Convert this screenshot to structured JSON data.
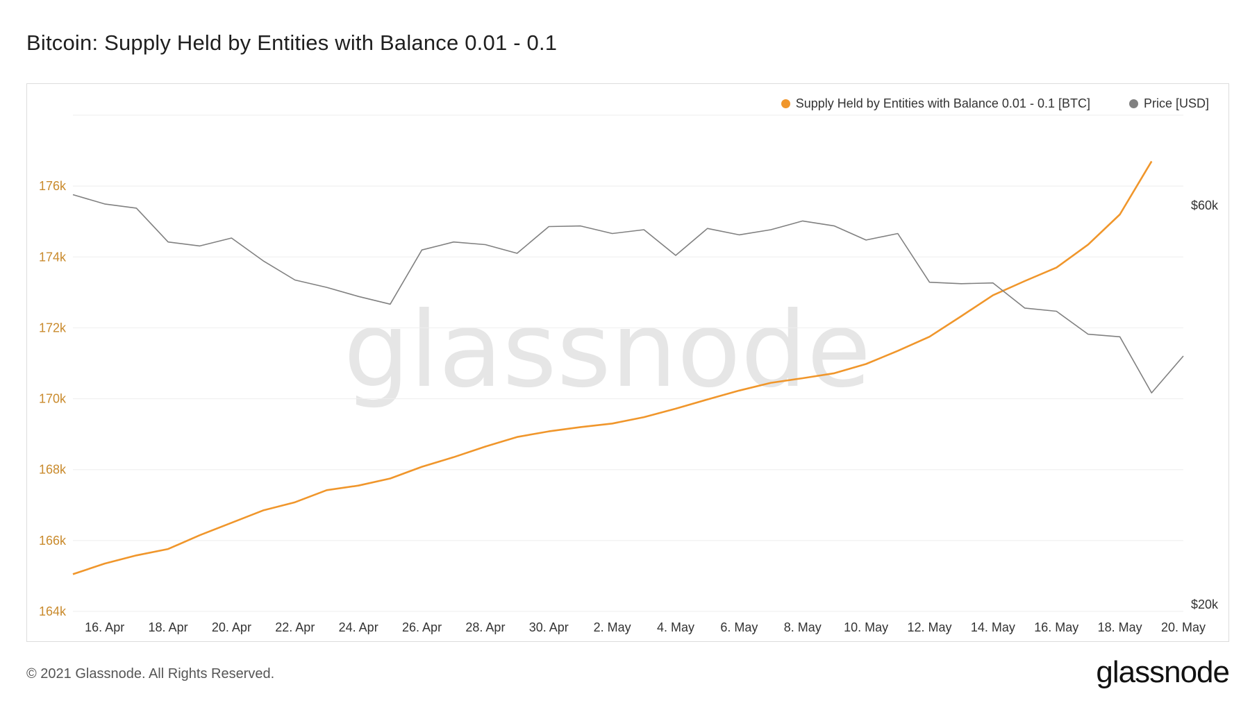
{
  "page": {
    "title": "Bitcoin: Supply Held by Entities with Balance 0.01 - 0.1",
    "copyright": "© 2021 Glassnode. All Rights Reserved.",
    "brand": "glassnode",
    "watermark": "glassnode"
  },
  "colors": {
    "supply": "#f0962b",
    "price": "#808080",
    "left_axis_text": "#c98a2c",
    "right_axis_text": "#333333",
    "grid": "#eeeeee"
  },
  "chart_data": {
    "type": "line",
    "title": "Bitcoin: Supply Held by Entities with Balance 0.01 - 0.1",
    "legend": [
      {
        "name": "Supply Held by Entities with Balance 0.01 - 0.1 [BTC]",
        "color": "#f0962b"
      },
      {
        "name": "Price [USD]",
        "color": "#808080"
      }
    ],
    "legend_position": "top-right",
    "grid": true,
    "x_ticks": [
      "16. Apr",
      "18. Apr",
      "20. Apr",
      "22. Apr",
      "24. Apr",
      "26. Apr",
      "28. Apr",
      "30. Apr",
      "2. May",
      "4. May",
      "6. May",
      "8. May",
      "10. May",
      "12. May",
      "14. May",
      "16. May",
      "18. May",
      "20. May"
    ],
    "x": [
      "15. Apr",
      "16. Apr",
      "17. Apr",
      "18. Apr",
      "19. Apr",
      "20. Apr",
      "21. Apr",
      "22. Apr",
      "23. Apr",
      "24. Apr",
      "25. Apr",
      "26. Apr",
      "27. Apr",
      "28. Apr",
      "29. Apr",
      "30. Apr",
      "1. May",
      "2. May",
      "3. May",
      "4. May",
      "5. May",
      "6. May",
      "7. May",
      "8. May",
      "9. May",
      "10. May",
      "11. May",
      "12. May",
      "13. May",
      "14. May",
      "15. May",
      "16. May",
      "17. May",
      "18. May",
      "19. May",
      "20. May"
    ],
    "y_left": {
      "ticks": [
        "164k",
        "166k",
        "168k",
        "170k",
        "172k",
        "174k",
        "176k"
      ],
      "range": [
        164000,
        178000
      ]
    },
    "y_right": {
      "ticks": [
        "$20k",
        "$60k"
      ],
      "tick_values": [
        20000,
        60000
      ],
      "scale": "log"
    },
    "series": [
      {
        "name": "Supply Held by Entities with Balance 0.01 - 0.1 [BTC]",
        "axis": "left",
        "values": [
          165050,
          165350,
          165580,
          165760,
          166150,
          166500,
          166850,
          167080,
          167420,
          167550,
          167750,
          168080,
          168350,
          168650,
          168920,
          169080,
          169200,
          169300,
          169480,
          169720,
          169980,
          170230,
          170450,
          170580,
          170720,
          170980,
          171350,
          171750,
          172330,
          172920,
          173320,
          173700,
          174350,
          175200,
          176700,
          null
        ]
      },
      {
        "name": "Price [USD]",
        "axis": "right",
        "values": [
          63000,
          61400,
          60700,
          55300,
          54700,
          55900,
          52500,
          49800,
          48800,
          47600,
          46600,
          54100,
          55300,
          54900,
          53600,
          57700,
          57800,
          56600,
          57200,
          53300,
          57400,
          56400,
          57200,
          58600,
          57800,
          55600,
          56600,
          49500,
          49300,
          49400,
          46100,
          45700,
          42900,
          42600,
          36500,
          40400
        ]
      }
    ]
  }
}
